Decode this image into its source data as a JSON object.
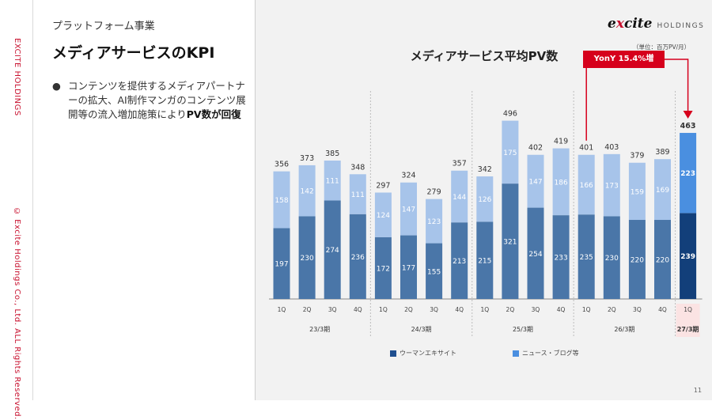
{
  "sidebar": {
    "brand": "EXCITE HOLDINGS",
    "copyright": "© Excite Holdings Co., Ltd. ALL Rights Reserved."
  },
  "header": {
    "section": "プラットフォーム事業",
    "title": "メディアサービスのKPI"
  },
  "bullet": {
    "text": "コンテンツを提供するメディアパートナーの拡大、AI制作マンガのコンテンツ展開等の流入増加施策により",
    "emphasis": "PV数が回復"
  },
  "logo": {
    "name_prefix": "e",
    "name_mid": "x",
    "name_suffix": "cite",
    "sub": "HOLDINGS"
  },
  "unit_note": "（単位：百万PV/月）",
  "badge": "YonY 15.4%増",
  "page_number": "11",
  "colors": {
    "dark": "#4a76a8",
    "light": "#a7c4ea",
    "highlight_dark": "#123f7a",
    "highlight_light": "#4a8fe0",
    "accent_red": "#d6001c"
  },
  "chart_data": {
    "type": "bar",
    "stacked": true,
    "title": "メディアサービス平均PV数",
    "categories": [
      "1Q",
      "2Q",
      "3Q",
      "4Q",
      "1Q",
      "2Q",
      "3Q",
      "4Q",
      "1Q",
      "2Q",
      "3Q",
      "4Q",
      "1Q",
      "2Q",
      "3Q",
      "4Q",
      "1Q"
    ],
    "groups": [
      {
        "label": "23/3期",
        "count": 4
      },
      {
        "label": "24/3期",
        "count": 4
      },
      {
        "label": "25/3期",
        "count": 4
      },
      {
        "label": "26/3期",
        "count": 4
      },
      {
        "label": "27/3期",
        "count": 1
      }
    ],
    "series": [
      {
        "name": "ウーマンエキサイト",
        "values": [
          197,
          230,
          274,
          236,
          172,
          177,
          155,
          213,
          215,
          321,
          254,
          233,
          235,
          230,
          220,
          220,
          239
        ]
      },
      {
        "name": "ニュース・ブログ等",
        "values": [
          158,
          142,
          111,
          111,
          124,
          147,
          123,
          144,
          126,
          175,
          147,
          186,
          166,
          173,
          159,
          169,
          223
        ]
      }
    ],
    "totals": [
      356,
      373,
      385,
      348,
      297,
      324,
      279,
      357,
      342,
      496,
      402,
      419,
      401,
      403,
      379,
      389,
      463
    ],
    "ylim": [
      0,
      520
    ]
  }
}
